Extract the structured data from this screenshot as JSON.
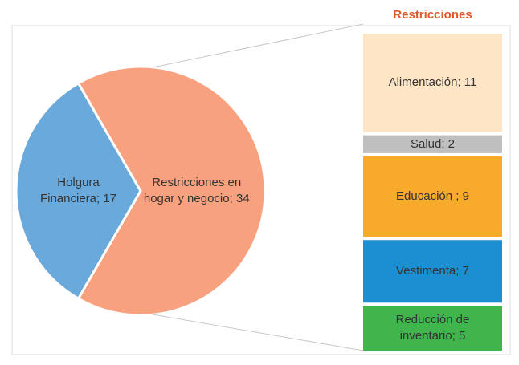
{
  "chart_data": {
    "type": "pie-of-bar",
    "pie": {
      "values": [
        17,
        34
      ],
      "value_labels": [
        "Holgura Financiera; 17",
        "Restricciones en hogar y negocio; 34"
      ],
      "colors": [
        "#6aa9dc",
        "#f8a17e"
      ]
    },
    "bar": {
      "title": "Restricciones",
      "values": [
        11,
        2,
        9,
        7,
        5
      ],
      "value_labels": [
        "Alimentación; 11",
        "Salud; 2",
        "Educación ; 9",
        "Vestimenta; 7",
        "Reducción de inventario; 5"
      ],
      "colors": [
        "#fde5c6",
        "#bfbfbf",
        "#f8aa2a",
        "#1b8fd2",
        "#3fb54c"
      ]
    }
  }
}
